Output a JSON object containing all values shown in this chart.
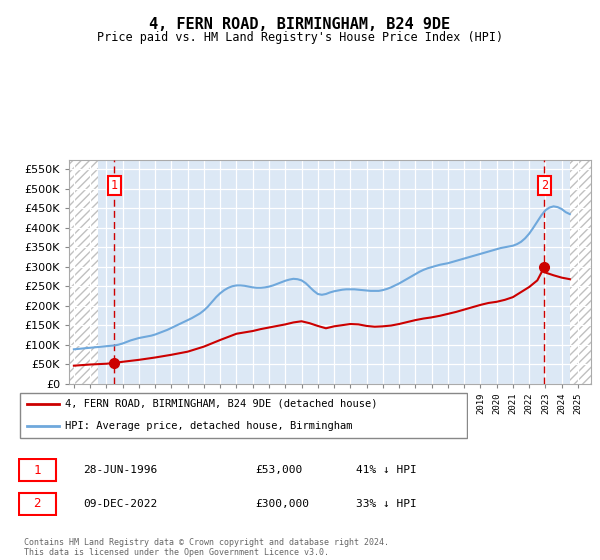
{
  "title": "4, FERN ROAD, BIRMINGHAM, B24 9DE",
  "subtitle": "Price paid vs. HM Land Registry's House Price Index (HPI)",
  "legend_line1": "4, FERN ROAD, BIRMINGHAM, B24 9DE (detached house)",
  "legend_line2": "HPI: Average price, detached house, Birmingham",
  "annotation1_date": "28-JUN-1996",
  "annotation1_price": "£53,000",
  "annotation1_hpi": "41% ↓ HPI",
  "annotation2_date": "09-DEC-2022",
  "annotation2_price": "£300,000",
  "annotation2_hpi": "33% ↓ HPI",
  "footer": "Contains HM Land Registry data © Crown copyright and database right 2024.\nThis data is licensed under the Open Government Licence v3.0.",
  "sale1_year": 1996.49,
  "sale1_price": 53000,
  "sale2_year": 2022.94,
  "sale2_price": 300000,
  "hpi_color": "#6fa8dc",
  "price_color": "#cc0000",
  "plot_bg_color": "#dce8f5",
  "ylim_min": 0,
  "ylim_max": 575000,
  "xlim_min": 1993.7,
  "xlim_max": 2025.8,
  "hatch_left_end": 1995.5,
  "hatch_right_start": 2024.5,
  "years_hpi": [
    1994.0,
    1994.25,
    1994.5,
    1994.75,
    1995.0,
    1995.25,
    1995.5,
    1995.75,
    1996.0,
    1996.25,
    1996.5,
    1996.75,
    1997.0,
    1997.25,
    1997.5,
    1997.75,
    1998.0,
    1998.25,
    1998.5,
    1998.75,
    1999.0,
    1999.25,
    1999.5,
    1999.75,
    2000.0,
    2000.25,
    2000.5,
    2000.75,
    2001.0,
    2001.25,
    2001.5,
    2001.75,
    2002.0,
    2002.25,
    2002.5,
    2002.75,
    2003.0,
    2003.25,
    2003.5,
    2003.75,
    2004.0,
    2004.25,
    2004.5,
    2004.75,
    2005.0,
    2005.25,
    2005.5,
    2005.75,
    2006.0,
    2006.25,
    2006.5,
    2006.75,
    2007.0,
    2007.25,
    2007.5,
    2007.75,
    2008.0,
    2008.25,
    2008.5,
    2008.75,
    2009.0,
    2009.25,
    2009.5,
    2009.75,
    2010.0,
    2010.25,
    2010.5,
    2010.75,
    2011.0,
    2011.25,
    2011.5,
    2011.75,
    2012.0,
    2012.25,
    2012.5,
    2012.75,
    2013.0,
    2013.25,
    2013.5,
    2013.75,
    2014.0,
    2014.25,
    2014.5,
    2014.75,
    2015.0,
    2015.25,
    2015.5,
    2015.75,
    2016.0,
    2016.25,
    2016.5,
    2016.75,
    2017.0,
    2017.25,
    2017.5,
    2017.75,
    2018.0,
    2018.25,
    2018.5,
    2018.75,
    2019.0,
    2019.25,
    2019.5,
    2019.75,
    2020.0,
    2020.25,
    2020.5,
    2020.75,
    2021.0,
    2021.25,
    2021.5,
    2021.75,
    2022.0,
    2022.25,
    2022.5,
    2022.75,
    2023.0,
    2023.25,
    2023.5,
    2023.75,
    2024.0,
    2024.25,
    2024.5
  ],
  "hpi_values": [
    88000,
    89000,
    90000,
    91000,
    92000,
    93000,
    94000,
    95000,
    96000,
    97000,
    98000,
    100000,
    103000,
    107000,
    111000,
    114000,
    117000,
    119000,
    121000,
    123000,
    126000,
    130000,
    134000,
    138000,
    143000,
    148000,
    153000,
    158000,
    163000,
    168000,
    174000,
    180000,
    188000,
    198000,
    210000,
    222000,
    232000,
    240000,
    246000,
    250000,
    252000,
    252000,
    251000,
    249000,
    247000,
    246000,
    246000,
    247000,
    249000,
    252000,
    256000,
    260000,
    264000,
    267000,
    269000,
    268000,
    265000,
    258000,
    248000,
    238000,
    230000,
    228000,
    230000,
    234000,
    237000,
    239000,
    241000,
    242000,
    242000,
    242000,
    241000,
    240000,
    239000,
    238000,
    238000,
    238000,
    240000,
    243000,
    247000,
    252000,
    257000,
    263000,
    269000,
    275000,
    281000,
    287000,
    292000,
    296000,
    299000,
    302000,
    305000,
    307000,
    309000,
    312000,
    315000,
    318000,
    321000,
    324000,
    327000,
    330000,
    333000,
    336000,
    339000,
    342000,
    345000,
    348000,
    350000,
    352000,
    354000,
    358000,
    364000,
    373000,
    385000,
    400000,
    416000,
    432000,
    445000,
    452000,
    455000,
    453000,
    448000,
    440000,
    435000
  ],
  "years_price": [
    1994.0,
    1995.0,
    1996.0,
    1996.49,
    1997.0,
    1998.0,
    1999.0,
    2000.0,
    2001.0,
    2002.0,
    2003.0,
    2004.0,
    2005.0,
    2005.5,
    2006.0,
    2006.5,
    2007.0,
    2007.5,
    2008.0,
    2008.5,
    2009.0,
    2009.5,
    2010.0,
    2010.5,
    2011.0,
    2011.5,
    2012.0,
    2012.5,
    2013.0,
    2013.5,
    2014.0,
    2014.5,
    2015.0,
    2015.5,
    2016.0,
    2016.5,
    2017.0,
    2017.5,
    2018.0,
    2018.5,
    2019.0,
    2019.5,
    2020.0,
    2020.5,
    2021.0,
    2021.5,
    2022.0,
    2022.5,
    2022.94,
    2023.0,
    2023.5,
    2024.0,
    2024.5
  ],
  "price_values": [
    46000,
    49000,
    51000,
    53000,
    56000,
    61000,
    67000,
    74000,
    82000,
    95000,
    112000,
    128000,
    135000,
    140000,
    144000,
    148000,
    152000,
    157000,
    160000,
    155000,
    148000,
    142000,
    147000,
    150000,
    153000,
    152000,
    148000,
    146000,
    147000,
    149000,
    153000,
    158000,
    163000,
    167000,
    170000,
    174000,
    179000,
    184000,
    190000,
    196000,
    202000,
    207000,
    210000,
    215000,
    222000,
    235000,
    248000,
    265000,
    300000,
    285000,
    278000,
    272000,
    268000
  ]
}
